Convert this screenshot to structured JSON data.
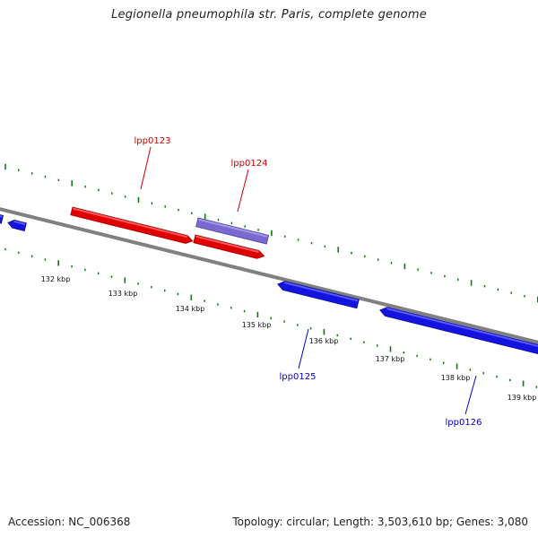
{
  "title": "Legionella pneumophila str. Paris, complete genome",
  "footer": {
    "accession": "Accession: NC_006368",
    "stats": "Topology: circular; Length: 3,503,610 bp; Genes: 3,080"
  },
  "colors": {
    "backbone": "#808080",
    "tick": "#0a7d0a",
    "forward_gene": "#e00000",
    "forward_gene_highlight": "#ff5a5a",
    "forward_gene_shadow": "#a00000",
    "reverse_gene": "#1414e0",
    "reverse_gene_highlight": "#5a5aff",
    "reverse_gene_shadow": "#0a0a9a",
    "other_gene": "#7a6ad0",
    "other_gene_highlight": "#a598f0",
    "other_gene_shadow": "#5040a0",
    "forward_label": "#cc0000",
    "reverse_label": "#0000cc",
    "scale_label": "#111111"
  },
  "scale_labels": [
    "132 kbp",
    "133 kbp",
    "134 kbp",
    "135 kbp",
    "136 kbp",
    "137 kbp",
    "138 kbp",
    "139 kbp"
  ],
  "genes": [
    {
      "label": "lpp0123",
      "strand": "forward"
    },
    {
      "label": "lpp0124",
      "strand": "forward"
    },
    {
      "label": "lpp0125",
      "strand": "reverse"
    },
    {
      "label": "lpp0126",
      "strand": "reverse"
    }
  ]
}
